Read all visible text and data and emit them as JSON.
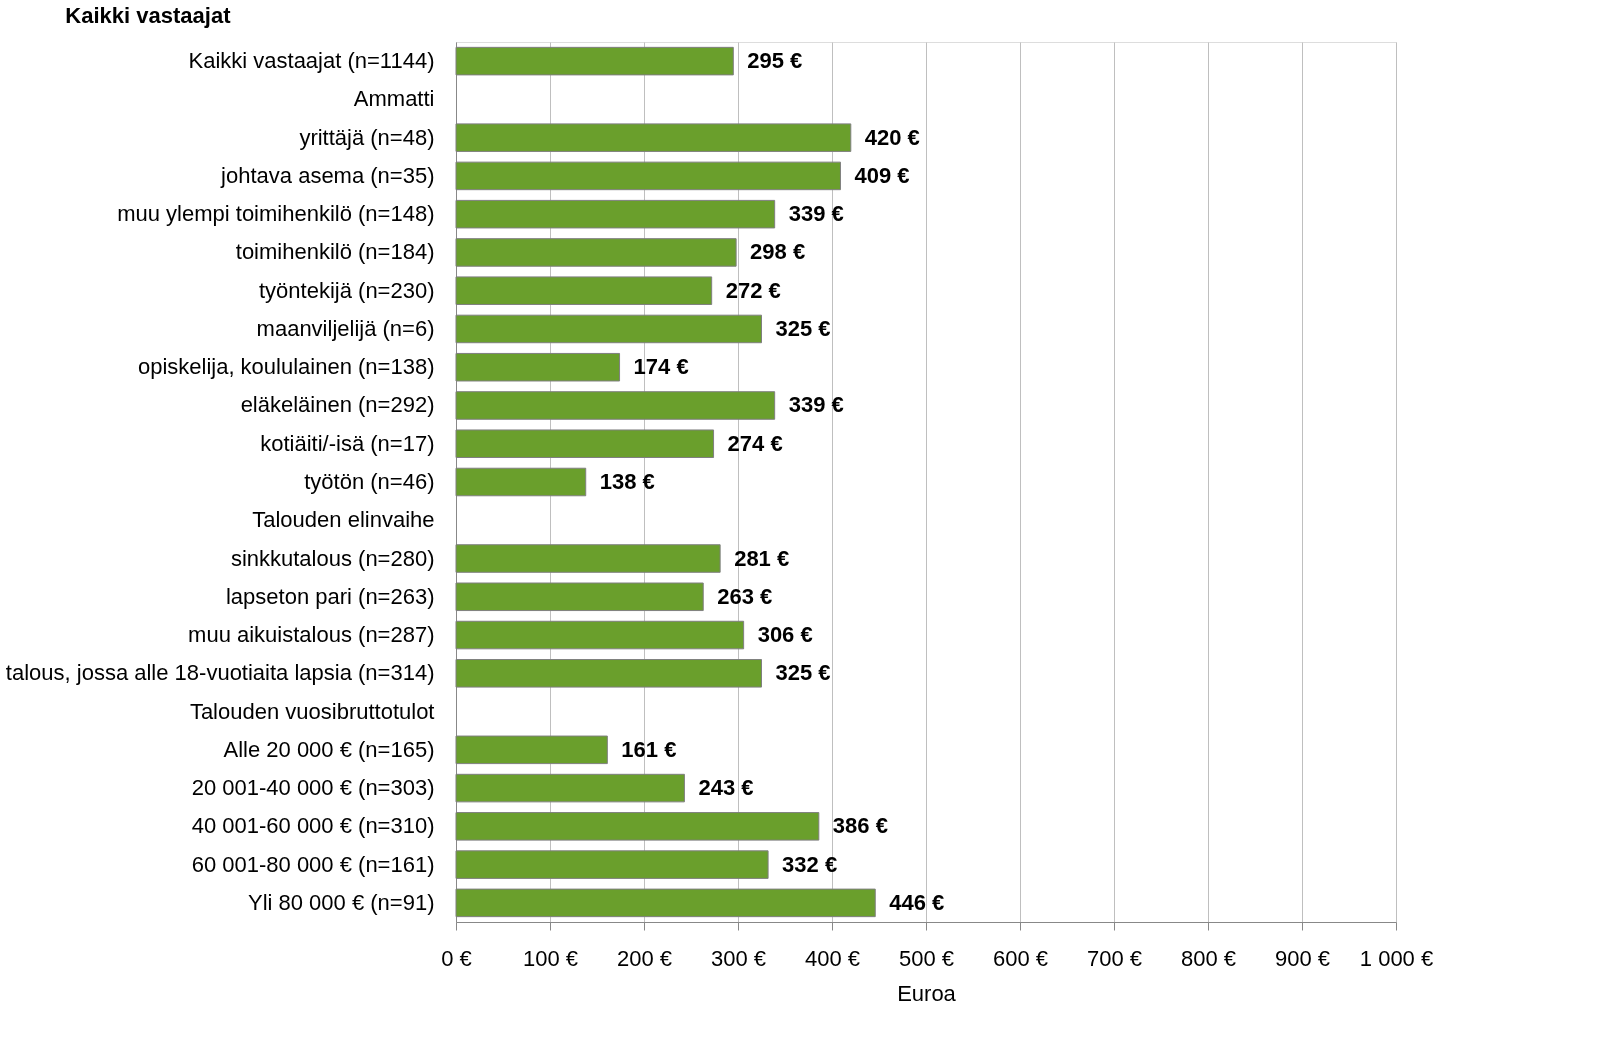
{
  "chart_data": {
    "type": "bar",
    "orientation": "horizontal",
    "title": "Kaikki vastaajat",
    "xlabel": "Euroa",
    "categories": [
      "Kaikki vastaajat (n=1144)",
      "Ammatti",
      "yrittäjä (n=48)",
      "johtava asema (n=35)",
      "muu ylempi toimihenkilö (n=148)",
      "toimihenkilö (n=184)",
      "työntekijä (n=230)",
      "maanviljelijä (n=6)",
      "opiskelija, koululainen (n=138)",
      "eläkeläinen (n=292)",
      "kotiäiti/-isä (n=17)",
      "työtön (n=46)",
      "Talouden elinvaihe",
      "sinkkutalous (n=280)",
      "lapseton pari (n=263)",
      "muu aikuistalous (n=287)",
      "talous, jossa alle 18-vuotiaita lapsia (n=314)",
      "Talouden vuosibruttotulot",
      "Alle 20 000 € (n=165)",
      "20 001-40 000 € (n=303)",
      "40 001-60 000 € (n=310)",
      "60 001-80 000 € (n=161)",
      "Yli 80 000 € (n=91)"
    ],
    "values": [
      295,
      null,
      420,
      409,
      339,
      298,
      272,
      325,
      174,
      339,
      274,
      138,
      null,
      281,
      263,
      306,
      325,
      null,
      161,
      243,
      386,
      332,
      446
    ],
    "value_labels": [
      "295 €",
      null,
      "420 €",
      "409 €",
      "339 €",
      "298 €",
      "272 €",
      "325 €",
      "174 €",
      "339 €",
      "274 €",
      "138 €",
      null,
      "281 €",
      "263 €",
      "306 €",
      "325 €",
      null,
      "161 €",
      "243 €",
      "386 €",
      "332 €",
      "446 €"
    ],
    "color": "#6a9f2c",
    "xlim": [
      0,
      1000
    ],
    "xticks": [
      {
        "value": 0,
        "label": "0 €"
      },
      {
        "value": 100,
        "label": "100 €"
      },
      {
        "value": 200,
        "label": "200 €"
      },
      {
        "value": 300,
        "label": "300 €"
      },
      {
        "value": 400,
        "label": "400 €"
      },
      {
        "value": 500,
        "label": "500 €"
      },
      {
        "value": 600,
        "label": "600 €"
      },
      {
        "value": 700,
        "label": "700 €"
      },
      {
        "value": 800,
        "label": "800 €"
      },
      {
        "value": 900,
        "label": "900 €"
      },
      {
        "value": 1000,
        "label": "1 000 €"
      }
    ],
    "grid": "x"
  }
}
